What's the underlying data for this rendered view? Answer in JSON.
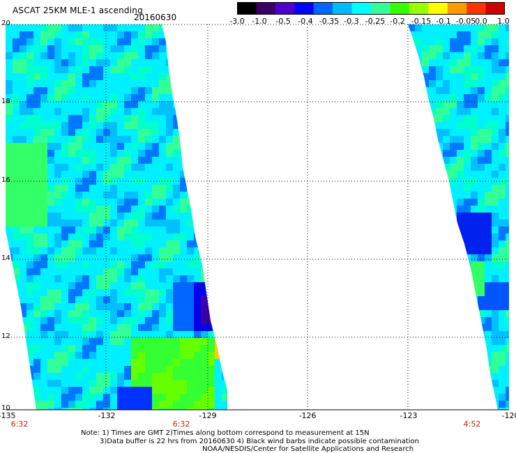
{
  "header": {
    "title": "ASCAT 25KM MLE-1 ascending",
    "date": "20160630"
  },
  "colorbar": {
    "tick_labels": [
      "-3.0",
      "-1.0",
      "-0.5",
      "-0.4",
      "-0.35",
      "-0.3",
      "-0.25",
      "-0.2",
      "-0.15",
      "-0.1",
      "-0.05",
      "0.0",
      "1.0"
    ],
    "colors": [
      "#000000",
      "#3a0066",
      "#4d00cc",
      "#0000ff",
      "#0066ff",
      "#00bbff",
      "#00ffff",
      "#33ff99",
      "#33ff00",
      "#99ff00",
      "#ffff00",
      "#ff9900",
      "#ff3300",
      "#cc0000"
    ]
  },
  "map": {
    "y_labels": [
      "20",
      "18",
      "16",
      "14",
      "12",
      "10"
    ],
    "x_labels": [
      "-135",
      "-132",
      "-129",
      "-126",
      "-123",
      "-120"
    ],
    "time_labels": [
      "6:32",
      "6:32",
      "4:52"
    ],
    "grid": true
  },
  "footer": {
    "note_line1": "Note: 1) Times are GMT 2)Times along bottom correspond to measurement at 15N",
    "note_line2": "3)Data buffer is 22 hrs from 20160630 4) Black wind barbs indicate possible contamination",
    "note_line3": "NOAA/NESDIS/Center for Satellite Applications and Research"
  }
}
